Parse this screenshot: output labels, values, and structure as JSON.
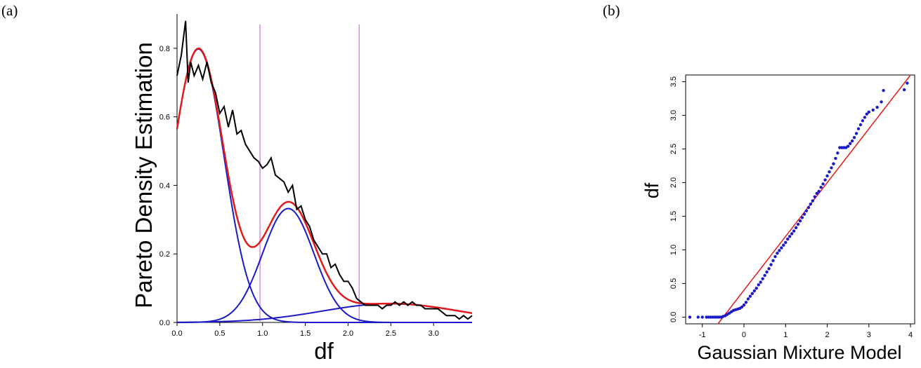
{
  "chart_data": [
    {
      "panel_label": "(a)",
      "type": "line",
      "xlabel": "df",
      "ylabel": "Pareto Density Estimation",
      "xlim": [
        0,
        3.45
      ],
      "ylim": [
        0,
        0.9
      ],
      "xticks": [
        "0.0",
        "0.5",
        "1.0",
        "1.5",
        "2.0",
        "2.5",
        "3.0"
      ],
      "yticks": [
        "0.0",
        "0.2",
        "0.4",
        "0.6",
        "0.8"
      ],
      "vlines": [
        0.97,
        2.13
      ],
      "colors": {
        "density": "#000000",
        "mixture": "#e31a1c",
        "components": "#1a1ac8",
        "vlines": "#d58be0"
      },
      "components": [
        {
          "weight": 0.6,
          "mean": 0.25,
          "sd": 0.3
        },
        {
          "weight": 0.25,
          "mean": 1.3,
          "sd": 0.3
        },
        {
          "weight": 0.11,
          "mean": 2.5,
          "sd": 0.8
        }
      ],
      "empirical_x": [
        0.0,
        0.05,
        0.1,
        0.13,
        0.16,
        0.2,
        0.25,
        0.3,
        0.35,
        0.4,
        0.45,
        0.5,
        0.55,
        0.6,
        0.65,
        0.7,
        0.75,
        0.8,
        0.85,
        0.9,
        0.95,
        1.0,
        1.05,
        1.1,
        1.15,
        1.2,
        1.25,
        1.3,
        1.35,
        1.4,
        1.45,
        1.5,
        1.55,
        1.6,
        1.65,
        1.7,
        1.75,
        1.8,
        1.85,
        1.9,
        1.95,
        2.0,
        2.05,
        2.1,
        2.15,
        2.2,
        2.25,
        2.3,
        2.35,
        2.4,
        2.45,
        2.5,
        2.55,
        2.6,
        2.65,
        2.7,
        2.75,
        2.8,
        2.85,
        2.9,
        2.95,
        3.0,
        3.05,
        3.1,
        3.15,
        3.2,
        3.25,
        3.3,
        3.35,
        3.4,
        3.45
      ],
      "empirical_y": [
        0.72,
        0.78,
        0.88,
        0.7,
        0.76,
        0.72,
        0.75,
        0.71,
        0.76,
        0.7,
        0.67,
        0.61,
        0.63,
        0.57,
        0.62,
        0.55,
        0.56,
        0.52,
        0.5,
        0.48,
        0.47,
        0.45,
        0.46,
        0.48,
        0.43,
        0.42,
        0.41,
        0.38,
        0.4,
        0.33,
        0.34,
        0.3,
        0.28,
        0.24,
        0.22,
        0.2,
        0.2,
        0.16,
        0.17,
        0.14,
        0.12,
        0.12,
        0.1,
        0.07,
        0.06,
        0.05,
        0.05,
        0.05,
        0.05,
        0.04,
        0.05,
        0.05,
        0.06,
        0.05,
        0.06,
        0.05,
        0.06,
        0.05,
        0.05,
        0.04,
        0.04,
        0.04,
        0.04,
        0.03,
        0.02,
        0.02,
        0.02,
        0.01,
        0.02,
        0.01,
        0.02
      ]
    },
    {
      "panel_label": "(b)",
      "type": "scatter",
      "xlabel": "Gaussian Mixture Model",
      "ylabel": "df",
      "xlim": [
        -1.4,
        4.1
      ],
      "ylim": [
        -0.1,
        3.6
      ],
      "xticks": [
        "-1",
        "0",
        "1",
        "2",
        "3",
        "4"
      ],
      "yticks": [
        "0.0",
        "0.5",
        "1.0",
        "1.5",
        "2.0",
        "2.5",
        "3.0",
        "3.5"
      ],
      "colors": {
        "points": "#1a1ac8",
        "reference_line": "#e31a1c"
      },
      "reference_line": {
        "slope": 0.8,
        "intercept": 0.4
      },
      "points": [
        [
          -1.3,
          0.0
        ],
        [
          -1.1,
          0.0
        ],
        [
          -1.0,
          0.0
        ],
        [
          -0.9,
          0.0
        ],
        [
          -0.85,
          0.0
        ],
        [
          -0.8,
          0.0
        ],
        [
          -0.75,
          0.0
        ],
        [
          -0.7,
          0.0
        ],
        [
          -0.65,
          0.0
        ],
        [
          -0.6,
          0.0
        ],
        [
          -0.55,
          0.0
        ],
        [
          -0.5,
          0.01
        ],
        [
          -0.45,
          0.02
        ],
        [
          -0.4,
          0.04
        ],
        [
          -0.35,
          0.06
        ],
        [
          -0.3,
          0.08
        ],
        [
          -0.25,
          0.1
        ],
        [
          -0.2,
          0.11
        ],
        [
          -0.15,
          0.12
        ],
        [
          -0.1,
          0.13
        ],
        [
          -0.05,
          0.15
        ],
        [
          0.0,
          0.18
        ],
        [
          0.05,
          0.22
        ],
        [
          0.1,
          0.27
        ],
        [
          0.15,
          0.31
        ],
        [
          0.2,
          0.35
        ],
        [
          0.25,
          0.39
        ],
        [
          0.3,
          0.43
        ],
        [
          0.35,
          0.48
        ],
        [
          0.4,
          0.52
        ],
        [
          0.45,
          0.57
        ],
        [
          0.5,
          0.62
        ],
        [
          0.55,
          0.67
        ],
        [
          0.6,
          0.72
        ],
        [
          0.65,
          0.78
        ],
        [
          0.7,
          0.84
        ],
        [
          0.75,
          0.9
        ],
        [
          0.8,
          0.95
        ],
        [
          0.85,
          0.99
        ],
        [
          0.9,
          1.03
        ],
        [
          0.95,
          1.07
        ],
        [
          1.0,
          1.11
        ],
        [
          1.05,
          1.16
        ],
        [
          1.1,
          1.2
        ],
        [
          1.15,
          1.24
        ],
        [
          1.2,
          1.28
        ],
        [
          1.25,
          1.33
        ],
        [
          1.3,
          1.38
        ],
        [
          1.35,
          1.43
        ],
        [
          1.4,
          1.48
        ],
        [
          1.45,
          1.53
        ],
        [
          1.5,
          1.58
        ],
        [
          1.55,
          1.63
        ],
        [
          1.6,
          1.68
        ],
        [
          1.65,
          1.73
        ],
        [
          1.7,
          1.79
        ],
        [
          1.75,
          1.84
        ],
        [
          1.8,
          1.87
        ],
        [
          1.85,
          1.93
        ],
        [
          1.9,
          1.98
        ],
        [
          1.95,
          2.04
        ],
        [
          2.0,
          2.1
        ],
        [
          2.05,
          2.16
        ],
        [
          2.1,
          2.22
        ],
        [
          2.15,
          2.28
        ],
        [
          2.2,
          2.36
        ],
        [
          2.25,
          2.44
        ],
        [
          2.3,
          2.52
        ],
        [
          2.35,
          2.52
        ],
        [
          2.4,
          2.52
        ],
        [
          2.45,
          2.52
        ],
        [
          2.5,
          2.54
        ],
        [
          2.55,
          2.58
        ],
        [
          2.6,
          2.62
        ],
        [
          2.65,
          2.67
        ],
        [
          2.7,
          2.73
        ],
        [
          2.75,
          2.8
        ],
        [
          2.8,
          2.86
        ],
        [
          2.85,
          2.92
        ],
        [
          2.9,
          2.97
        ],
        [
          2.95,
          3.02
        ],
        [
          3.0,
          3.05
        ],
        [
          3.1,
          3.08
        ],
        [
          3.2,
          3.12
        ],
        [
          3.3,
          3.2
        ],
        [
          3.35,
          3.37
        ],
        [
          3.85,
          3.38
        ],
        [
          3.92,
          3.48
        ]
      ]
    }
  ]
}
